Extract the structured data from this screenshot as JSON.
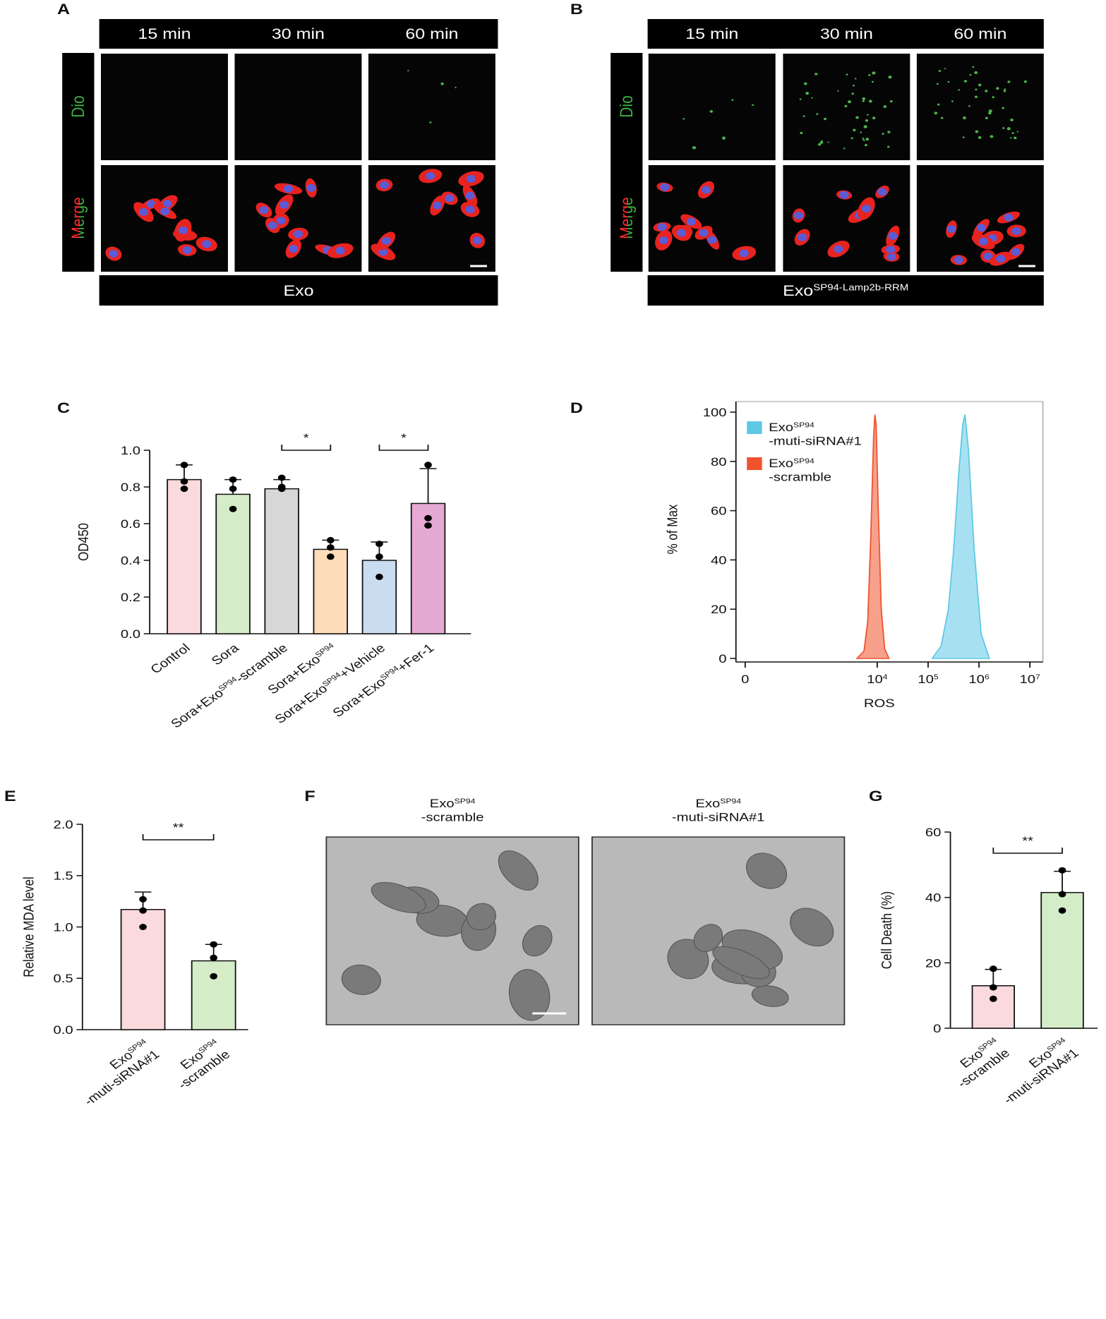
{
  "panel_labels": [
    "A",
    "B",
    "C",
    "D",
    "E",
    "F",
    "G"
  ],
  "micrographs": [
    {
      "columns": [
        "15 min",
        "30 min",
        "60 min"
      ],
      "rows": [
        "Dio",
        "Merge"
      ],
      "group": "Exo"
    },
    {
      "columns": [
        "15 min",
        "30 min",
        "60 min"
      ],
      "rows": [
        "Dio",
        "Merge"
      ],
      "group": [
        "Exo",
        "SP94-Lamp2b-RRM"
      ]
    }
  ],
  "tem": {
    "titles": [
      [
        "Exo",
        "SP94",
        "-scramble"
      ],
      [
        "Exo",
        "SP94",
        "-muti-siRNA#1"
      ]
    ]
  },
  "chart_data": [
    {
      "type": "bar",
      "y_label": "OD450",
      "categories": [
        [
          "Control"
        ],
        [
          "Sora"
        ],
        [
          "Sora+Exo",
          "SP94",
          "-scramble"
        ],
        [
          "Sora+Exo",
          "SP94"
        ],
        [
          "Sora+Exo",
          "SP94",
          "+Vehicle"
        ],
        [
          "Sora+Exo",
          "SP94",
          "+Fer-1"
        ]
      ],
      "values": [
        0.84,
        0.76,
        0.79,
        0.46,
        0.4,
        0.71
      ],
      "errors": [
        0.08,
        0.08,
        0.05,
        0.05,
        0.1,
        0.19
      ],
      "points": [
        [
          0.92,
          0.83,
          0.79
        ],
        [
          0.84,
          0.79,
          0.68
        ],
        [
          0.85,
          0.8,
          0.79
        ],
        [
          0.51,
          0.47,
          0.42
        ],
        [
          0.49,
          0.42,
          0.31
        ],
        [
          0.92,
          0.63,
          0.59
        ]
      ],
      "colors": [
        "#fadadd",
        "#d5ecc9",
        "#d7d7d7",
        "#fddcb9",
        "#c9dcf0",
        "#e5a9d3"
      ],
      "ylim": [
        0,
        1.0
      ],
      "yticks": [
        {
          "value": 0,
          "label": "0.0"
        },
        0.2,
        0.4,
        0.6,
        0.8,
        {
          "value": 1.0,
          "label": "1.0"
        }
      ],
      "significance": [
        {
          "pair": [
            2,
            3
          ],
          "label": "*"
        },
        {
          "pair": [
            4,
            5
          ],
          "label": "*"
        }
      ]
    },
    {
      "type": "area",
      "x_label": "ROS",
      "y_label": "% of Max",
      "xscale": "biexponential",
      "series": [
        {
          "name": [
            "Exo",
            "SP94",
            "-muti-siRNA#1"
          ],
          "color": "#5ec8e5",
          "x": [
            120000,
            180000,
            250000,
            320000,
            400000,
            480000,
            530000,
            620000,
            800000,
            1100000,
            1600000
          ],
          "values": [
            0,
            5,
            20,
            45,
            75,
            95,
            99,
            85,
            45,
            10,
            0
          ]
        },
        {
          "name": [
            "Exo",
            "SP94",
            "-scramble"
          ],
          "color": "#f0522d",
          "x": [
            4000,
            5500,
            6500,
            7500,
            8500,
            9000,
            9500,
            10500,
            12000,
            14000,
            17000
          ],
          "values": [
            0,
            3,
            15,
            50,
            90,
            99,
            95,
            60,
            20,
            4,
            0
          ]
        }
      ],
      "xlim": [
        0,
        10000000
      ],
      "xticks": [
        0,
        {
          "value": 10000,
          "label": [
            "10",
            "4"
          ]
        },
        {
          "value": 100000,
          "label": [
            "10",
            "5"
          ]
        },
        {
          "value": 1000000,
          "label": [
            "10",
            "6"
          ]
        },
        {
          "value": 10000000,
          "label": [
            "10",
            "7"
          ]
        }
      ],
      "ylim": [
        0,
        100
      ],
      "yticks": [
        0,
        20,
        40,
        60,
        80,
        100
      ],
      "legend": "upper left"
    },
    {
      "type": "bar",
      "y_label": "Relative MDA level",
      "categories": [
        [
          "Exo",
          "SP94",
          "-muti-siRNA#1"
        ],
        [
          "Exo",
          "SP94",
          "-scramble"
        ]
      ],
      "values": [
        1.17,
        0.67
      ],
      "errors": [
        0.17,
        0.16
      ],
      "points": [
        [
          1.27,
          1.16,
          1.0
        ],
        [
          0.83,
          0.7,
          0.52
        ]
      ],
      "colors": [
        "#fadadd",
        "#d5ecc9"
      ],
      "ylim": [
        0,
        2.0
      ],
      "yticks": [
        {
          "value": 0,
          "label": "0.0"
        },
        0.5,
        {
          "value": 1.0,
          "label": "1.0"
        },
        1.5,
        {
          "value": 2.0,
          "label": "2.0"
        }
      ],
      "significance": [
        {
          "pair": [
            0,
            1
          ],
          "label": "**"
        }
      ]
    },
    {
      "type": "bar",
      "y_label": "Cell Death (%)",
      "categories": [
        [
          "Exo",
          "SP94",
          "-scramble"
        ],
        [
          "Exo",
          "SP94",
          "-muti-siRNA#1"
        ]
      ],
      "values": [
        13,
        41.5
      ],
      "errors": [
        5,
        6.5
      ],
      "points": [
        [
          18.2,
          12.5,
          9
        ],
        [
          48.3,
          41,
          36
        ]
      ],
      "colors": [
        "#fadadd",
        "#d5ecc9"
      ],
      "ylim": [
        0,
        60
      ],
      "yticks": [
        0,
        20,
        40,
        60
      ],
      "significance": [
        {
          "pair": [
            0,
            1
          ],
          "label": "**"
        }
      ]
    }
  ]
}
